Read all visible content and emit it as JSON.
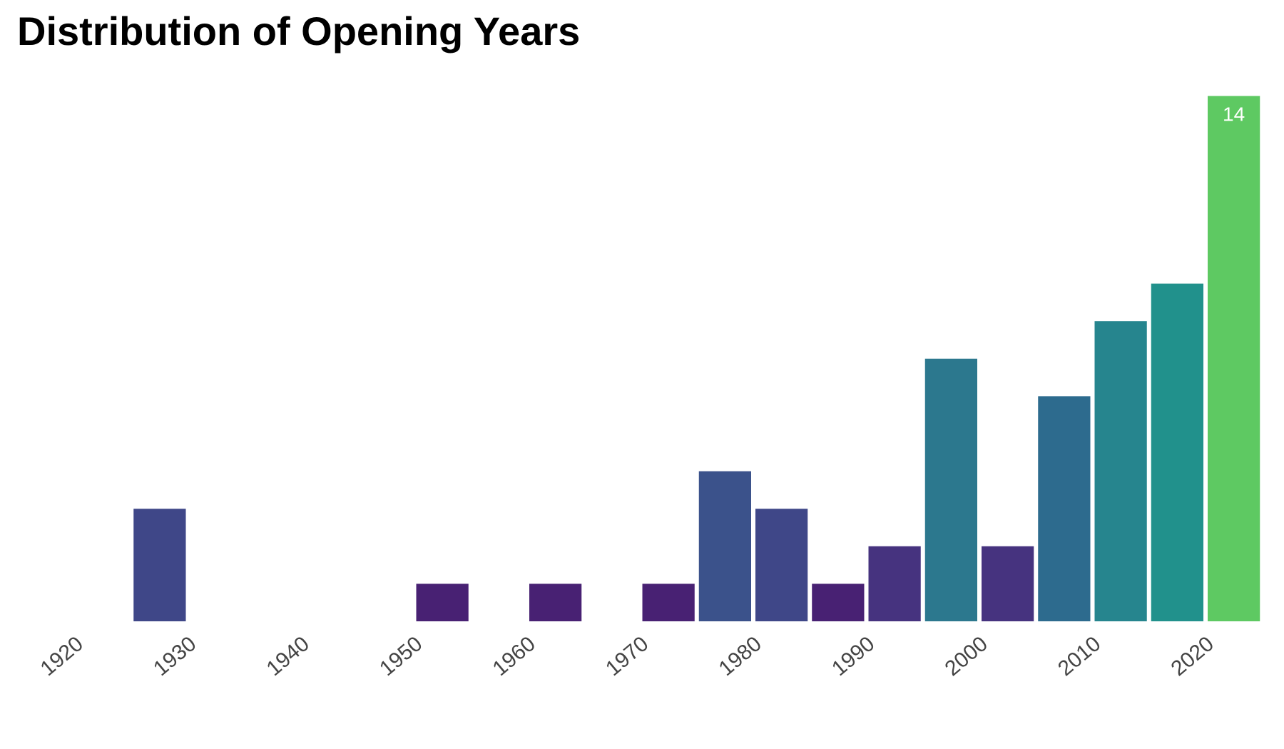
{
  "chart_data": {
    "type": "bar",
    "title": "Distribution of Opening Years",
    "xlabel": "",
    "ylabel": "",
    "grid": false,
    "legend": "none",
    "bin_width": 5,
    "bins": [
      {
        "start": 1920,
        "count": 0,
        "color": "#46327e"
      },
      {
        "start": 1925,
        "count": 3,
        "color": "#3f4788"
      },
      {
        "start": 1930,
        "count": 0,
        "color": "#46327e"
      },
      {
        "start": 1935,
        "count": 0,
        "color": "#46327e"
      },
      {
        "start": 1940,
        "count": 0,
        "color": "#46327e"
      },
      {
        "start": 1945,
        "count": 0,
        "color": "#46327e"
      },
      {
        "start": 1950,
        "count": 1,
        "color": "#482173"
      },
      {
        "start": 1955,
        "count": 0,
        "color": "#46327e"
      },
      {
        "start": 1960,
        "count": 1,
        "color": "#482173"
      },
      {
        "start": 1965,
        "count": 0,
        "color": "#46327e"
      },
      {
        "start": 1970,
        "count": 1,
        "color": "#482173"
      },
      {
        "start": 1975,
        "count": 4,
        "color": "#3b528b"
      },
      {
        "start": 1980,
        "count": 3,
        "color": "#3f4788"
      },
      {
        "start": 1985,
        "count": 1,
        "color": "#482173"
      },
      {
        "start": 1990,
        "count": 2,
        "color": "#46337f"
      },
      {
        "start": 1995,
        "count": 7,
        "color": "#2c788e"
      },
      {
        "start": 2000,
        "count": 2,
        "color": "#46337f"
      },
      {
        "start": 2005,
        "count": 6,
        "color": "#2d6b8e"
      },
      {
        "start": 2010,
        "count": 8,
        "color": "#26858e"
      },
      {
        "start": 2015,
        "count": 9,
        "color": "#21918c"
      },
      {
        "start": 2020,
        "count": 14,
        "color": "#5ec962"
      }
    ],
    "xticks": [
      1920,
      1930,
      1940,
      1950,
      1960,
      1970,
      1980,
      1990,
      2000,
      2010,
      2020
    ],
    "xlim": [
      1920,
      2025
    ],
    "ylim": [
      0,
      14
    ],
    "data_labels": [
      {
        "bin_start": 2020,
        "text": "14"
      }
    ]
  }
}
